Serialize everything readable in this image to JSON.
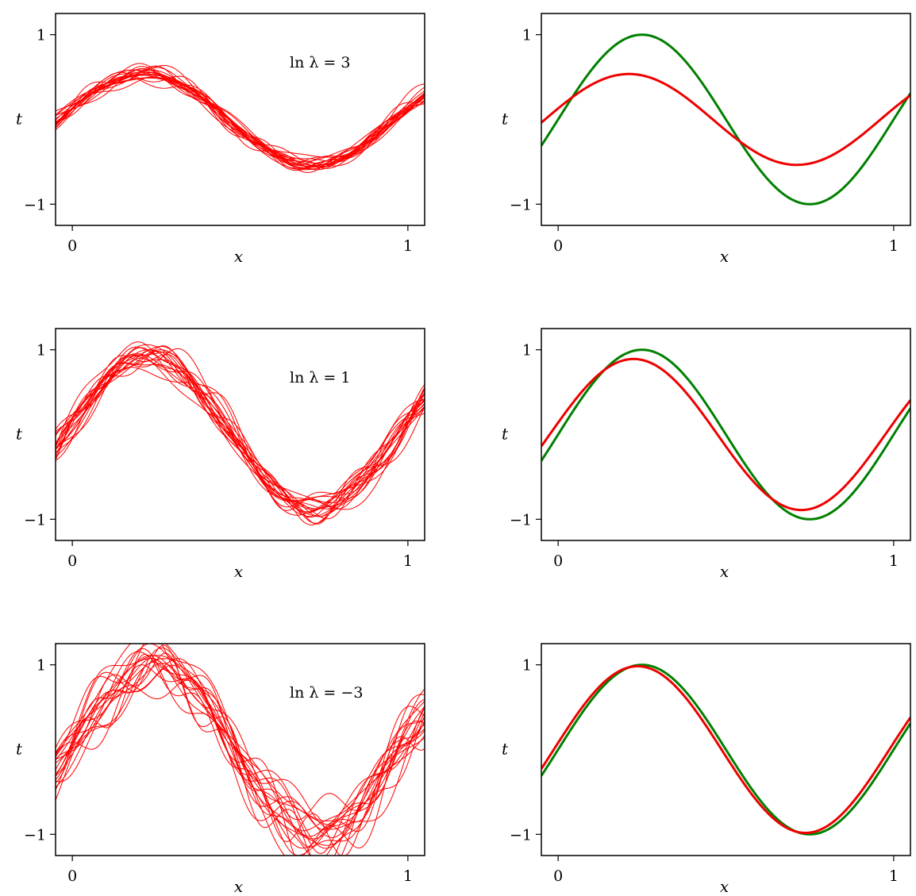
{
  "colors": {
    "fits": "#ff0000",
    "truth": "#008000",
    "mean": "#ee0000"
  },
  "chart_data": [
    {
      "type": "line",
      "xlabel": "x",
      "ylabel": "t",
      "xlim": [
        -0.05,
        1.05
      ],
      "ylim": [
        -1.25,
        1.25
      ],
      "xticks": [
        "0",
        "1"
      ],
      "yticks": [
        "1",
        "−1"
      ],
      "annotation": "ln λ = 3",
      "series": [
        {
          "values_at_x": [
            0.0,
            0.25,
            0.5,
            0.75,
            1.0
          ],
          "values": [
            0.13,
            0.52,
            0.0,
            -0.52,
            -0.13
          ]
        }
      ],
      "n_curves": 20,
      "noise": 0.05
    },
    {
      "type": "line",
      "xlabel": "x",
      "ylabel": "t",
      "xlim": [
        -0.05,
        1.05
      ],
      "ylim": [
        -1.25,
        1.25
      ],
      "xticks": [
        "0",
        "1"
      ],
      "yticks": [
        "1",
        "−1"
      ],
      "series": [
        {
          "name": "",
          "x": [
            0.0,
            0.25,
            0.5,
            0.75,
            1.0
          ],
          "values": [
            0.0,
            1.0,
            0.0,
            -1.0,
            0.0
          ]
        },
        {
          "name": "",
          "x": [
            0.0,
            0.25,
            0.5,
            0.75,
            1.0
          ],
          "values": [
            0.13,
            0.52,
            0.0,
            -0.52,
            -0.13
          ]
        }
      ]
    },
    {
      "type": "line",
      "xlabel": "x",
      "ylabel": "t",
      "xlim": [
        -0.05,
        1.05
      ],
      "ylim": [
        -1.25,
        1.25
      ],
      "xticks": [
        "0",
        "1"
      ],
      "yticks": [
        "1",
        "−1"
      ],
      "annotation": "ln λ = 1",
      "series": [
        {
          "values_at_x": [
            0.0,
            0.25,
            0.5,
            0.75,
            1.0
          ],
          "values": [
            0.14,
            0.88,
            0.0,
            -0.88,
            -0.14
          ]
        }
      ],
      "n_curves": 20,
      "noise": 0.1
    },
    {
      "type": "line",
      "xlabel": "x",
      "ylabel": "t",
      "xlim": [
        -0.05,
        1.05
      ],
      "ylim": [
        -1.25,
        1.25
      ],
      "xticks": [
        "0",
        "1"
      ],
      "yticks": [
        "1",
        "−1"
      ],
      "series": [
        {
          "x": [
            0.0,
            0.25,
            0.5,
            0.75,
            1.0
          ],
          "values": [
            0.0,
            1.0,
            0.0,
            -1.0,
            0.0
          ]
        },
        {
          "x": [
            0.0,
            0.25,
            0.5,
            0.75,
            1.0
          ],
          "values": [
            0.14,
            0.88,
            0.0,
            -0.88,
            -0.14
          ]
        }
      ]
    },
    {
      "type": "line",
      "xlabel": "x",
      "ylabel": "t",
      "xlim": [
        -0.05,
        1.05
      ],
      "ylim": [
        -1.25,
        1.25
      ],
      "xticks": [
        "0",
        "1"
      ],
      "yticks": [
        "1",
        "−1"
      ],
      "annotation": "ln λ = −3",
      "series": [
        {
          "values_at_x": [
            0.0,
            0.25,
            0.5,
            0.75,
            1.0
          ],
          "values": [
            0.08,
            0.98,
            0.0,
            -0.98,
            -0.08
          ]
        }
      ],
      "n_curves": 20,
      "noise": 0.2
    },
    {
      "type": "line",
      "xlabel": "x",
      "ylabel": "t",
      "xlim": [
        -0.05,
        1.05
      ],
      "ylim": [
        -1.25,
        1.25
      ],
      "xticks": [
        "0",
        "1"
      ],
      "yticks": [
        "1",
        "−1"
      ],
      "series": [
        {
          "x": [
            0.0,
            0.25,
            0.5,
            0.75,
            1.0
          ],
          "values": [
            0.0,
            1.0,
            0.0,
            -1.0,
            0.0
          ]
        },
        {
          "x": [
            0.0,
            0.25,
            0.5,
            0.75,
            1.0
          ],
          "values": [
            0.08,
            0.98,
            0.0,
            -0.98,
            -0.08
          ]
        }
      ]
    }
  ]
}
